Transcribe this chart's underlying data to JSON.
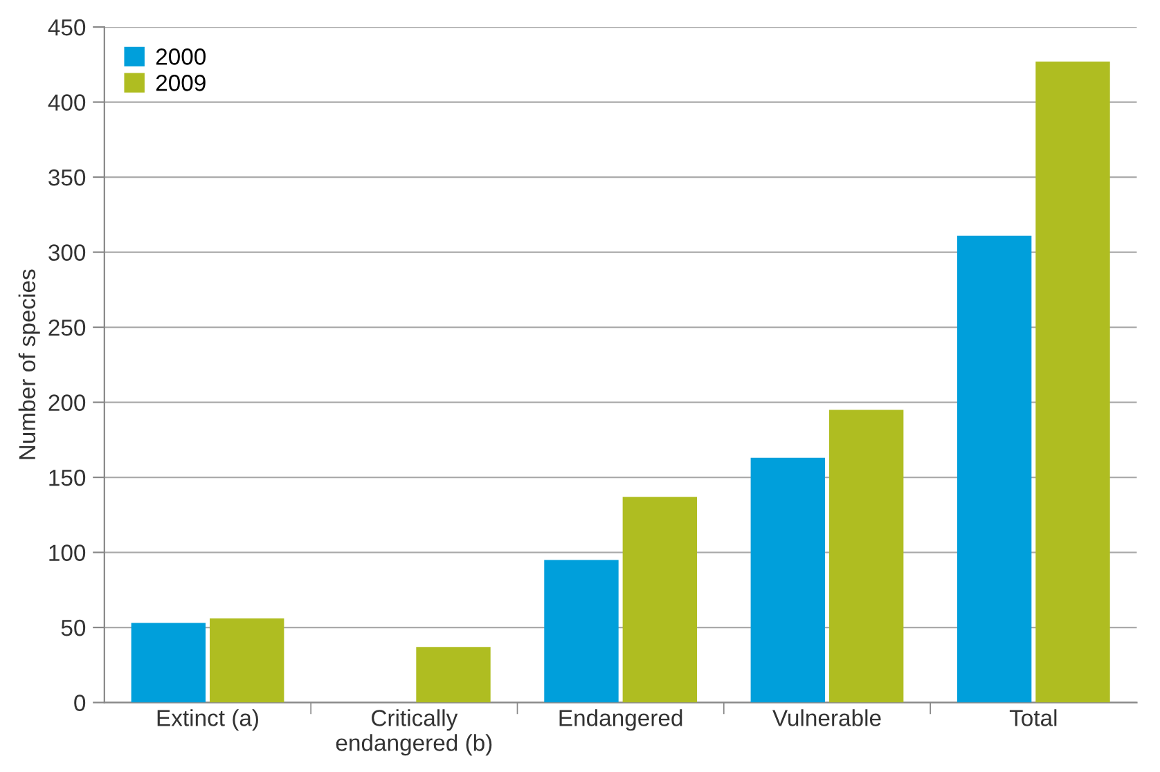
{
  "chart_data": {
    "type": "bar",
    "ylabel": "Number of species",
    "categories": [
      "Extinct (a)",
      "Critically\nendangered (b)",
      "Endangered",
      "Vulnerable",
      "Total"
    ],
    "series": [
      {
        "name": "2000",
        "color": "#009fdb",
        "values": [
          53,
          null,
          95,
          163,
          311
        ]
      },
      {
        "name": "2009",
        "color": "#afbd21",
        "values": [
          56,
          37,
          137,
          195,
          427
        ]
      }
    ],
    "ylim": [
      0,
      450
    ],
    "yticks": [
      0,
      50,
      100,
      150,
      200,
      250,
      300,
      350,
      400,
      450
    ],
    "grid": "y",
    "legend": "top left"
  }
}
